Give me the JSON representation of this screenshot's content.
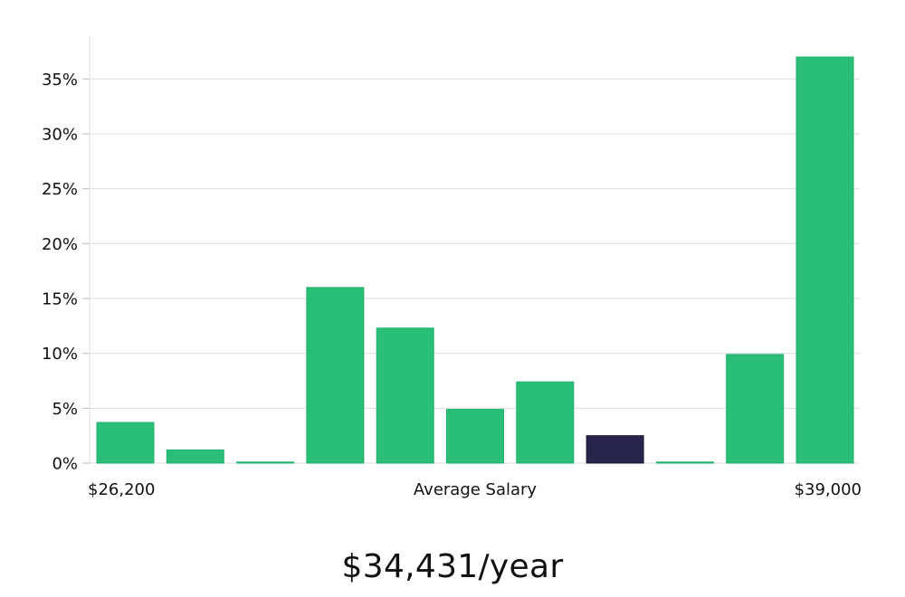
{
  "colors": {
    "bar": "#29bf78",
    "highlight": "#27234a",
    "grid": "#dedede",
    "axis": "#bbbbbb",
    "text": "#111111"
  },
  "headline": "$34,431/year",
  "chart_data": {
    "type": "bar",
    "title": "",
    "xlabel": "Average Salary",
    "ylabel": "",
    "x_range_labels": {
      "min": "$26,200",
      "max": "$39,000"
    },
    "categories": [
      "1",
      "2",
      "3",
      "4",
      "5",
      "6",
      "7",
      "8",
      "9",
      "10",
      "11"
    ],
    "values": [
      3.7,
      1.2,
      0.1,
      16.0,
      12.3,
      4.9,
      7.4,
      2.5,
      0.1,
      9.9,
      37.0
    ],
    "highlight_index": 7,
    "ylim": [
      0,
      37
    ],
    "yticks": [
      0,
      5,
      10,
      15,
      20,
      25,
      30,
      35
    ],
    "ytick_labels": [
      "0%",
      "5%",
      "10%",
      "15%",
      "20%",
      "25%",
      "30%",
      "35%"
    ],
    "grid": true,
    "legend": "none"
  }
}
